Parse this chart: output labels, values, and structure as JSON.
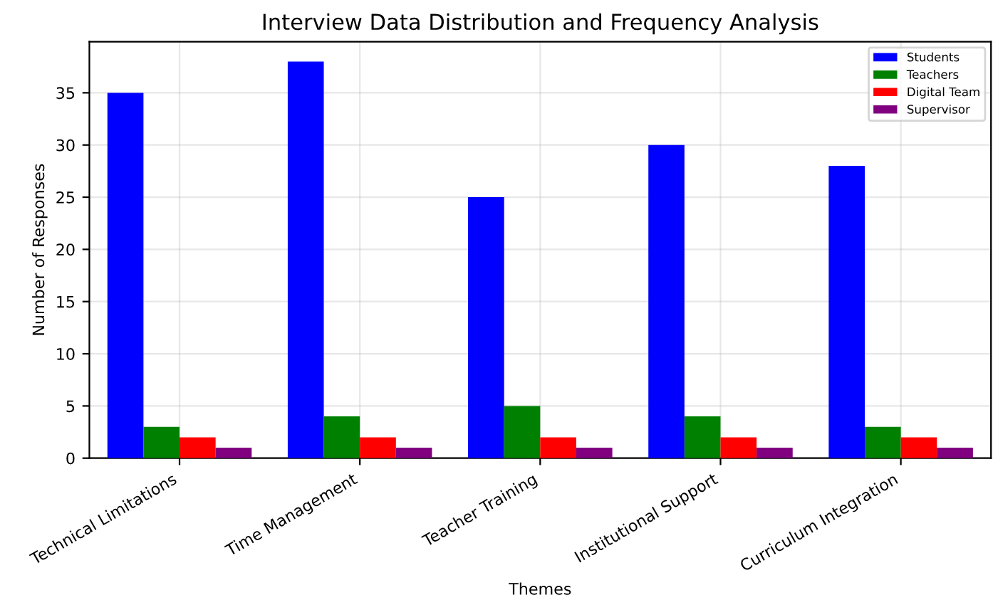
{
  "chart_data": {
    "type": "bar",
    "title": "Interview Data Distribution and Frequency Analysis",
    "xlabel": "Themes",
    "ylabel": "Number of Responses",
    "categories": [
      "Technical Limitations",
      "Time Management",
      "Teacher Training",
      "Institutional Support",
      "Curriculum Integration"
    ],
    "series": [
      {
        "name": "Students",
        "color": "#0000ff",
        "values": [
          35,
          38,
          25,
          30,
          28
        ]
      },
      {
        "name": "Teachers",
        "color": "#008000",
        "values": [
          3,
          4,
          5,
          4,
          3
        ]
      },
      {
        "name": "Digital Team",
        "color": "#ff0000",
        "values": [
          2,
          2,
          2,
          2,
          2
        ]
      },
      {
        "name": "Supervisor",
        "color": "#800080",
        "values": [
          1,
          1,
          1,
          1,
          1
        ]
      }
    ],
    "ylim": [
      0,
      39.9
    ],
    "yticks": [
      0,
      5,
      10,
      15,
      20,
      25,
      30,
      35
    ],
    "grid": true,
    "legend": "top right"
  }
}
